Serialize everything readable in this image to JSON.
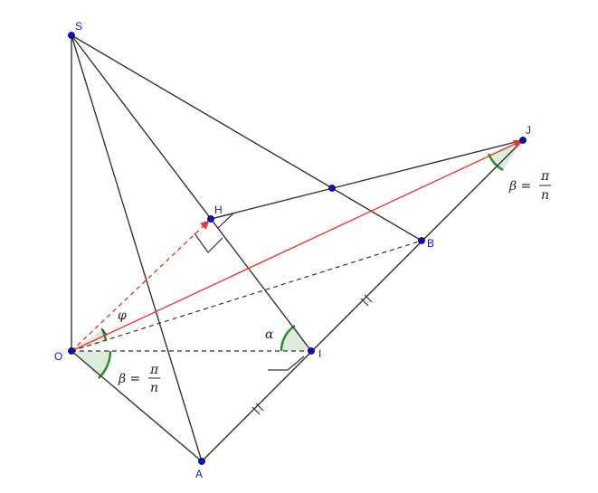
{
  "points": {
    "S": "S",
    "J": "J",
    "H": "H",
    "B": "B",
    "O": "O",
    "I": "I",
    "A": "A"
  },
  "annotations": {
    "phi": "φ",
    "alpha": "α",
    "beta_lhs_O": "β =",
    "beta_num_O": "π",
    "beta_den_O": "n",
    "beta_lhs_J": "β =",
    "beta_num_J": "π",
    "beta_den_J": "n"
  },
  "colors": {
    "solid": "#333333",
    "dashed": "#333333",
    "red": "#e53935",
    "point": "#0d0dc4",
    "angle_fill": "#c6dfc6",
    "angle_stroke": "#2e8b2e"
  }
}
